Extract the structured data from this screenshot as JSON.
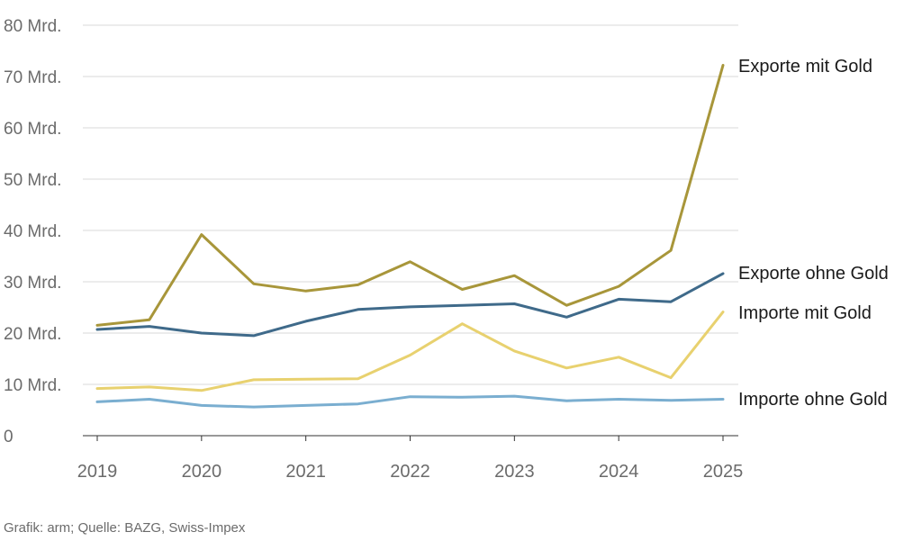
{
  "chart_data": {
    "type": "line",
    "x": [
      2019,
      2019.5,
      2020,
      2020.5,
      2021,
      2021.5,
      2022,
      2022.5,
      2023,
      2023.5,
      2024,
      2024.5,
      2025
    ],
    "x_ticks": [
      2019,
      2020,
      2021,
      2022,
      2023,
      2024,
      2025
    ],
    "x_tick_labels": [
      "2019",
      "2020",
      "2021",
      "2022",
      "2023",
      "2024",
      "2025"
    ],
    "y_ticks": [
      0,
      10,
      20,
      30,
      40,
      50,
      60,
      70,
      80
    ],
    "y_tick_labels": [
      "0",
      "10 Mrd.",
      "20 Mrd.",
      "30 Mrd.",
      "40 Mrd.",
      "50 Mrd.",
      "60 Mrd.",
      "70 Mrd.",
      "80 Mrd."
    ],
    "ylim": [
      0,
      80
    ],
    "xlim": [
      2019,
      2025
    ],
    "grid": "horizontal",
    "legend": "direct labels at right end of lines",
    "series": [
      {
        "name": "Exporte mit Gold",
        "color": "#a8963a",
        "values": [
          21.5,
          22.6,
          39.2,
          29.6,
          28.2,
          29.4,
          33.9,
          28.5,
          31.2,
          25.4,
          29.1,
          36.1,
          72.2
        ]
      },
      {
        "name": "Exporte ohne Gold",
        "color": "#3f6a8a",
        "values": [
          20.7,
          21.3,
          20.0,
          19.5,
          22.3,
          24.6,
          25.1,
          25.4,
          25.7,
          23.1,
          26.6,
          26.1,
          31.6
        ]
      },
      {
        "name": "Importe mit Gold",
        "color": "#e8d16f",
        "values": [
          9.2,
          9.5,
          8.8,
          10.9,
          11.0,
          11.1,
          15.7,
          21.8,
          16.5,
          13.2,
          15.3,
          11.3,
          24.1
        ]
      },
      {
        "name": "Importe ohne Gold",
        "color": "#7aaed0",
        "values": [
          6.6,
          7.1,
          5.9,
          5.6,
          5.9,
          6.2,
          7.6,
          7.5,
          7.7,
          6.8,
          7.1,
          6.9,
          7.1
        ]
      }
    ]
  },
  "source": "Grafik: arm; Quelle: BAZG, Swiss-Impex"
}
